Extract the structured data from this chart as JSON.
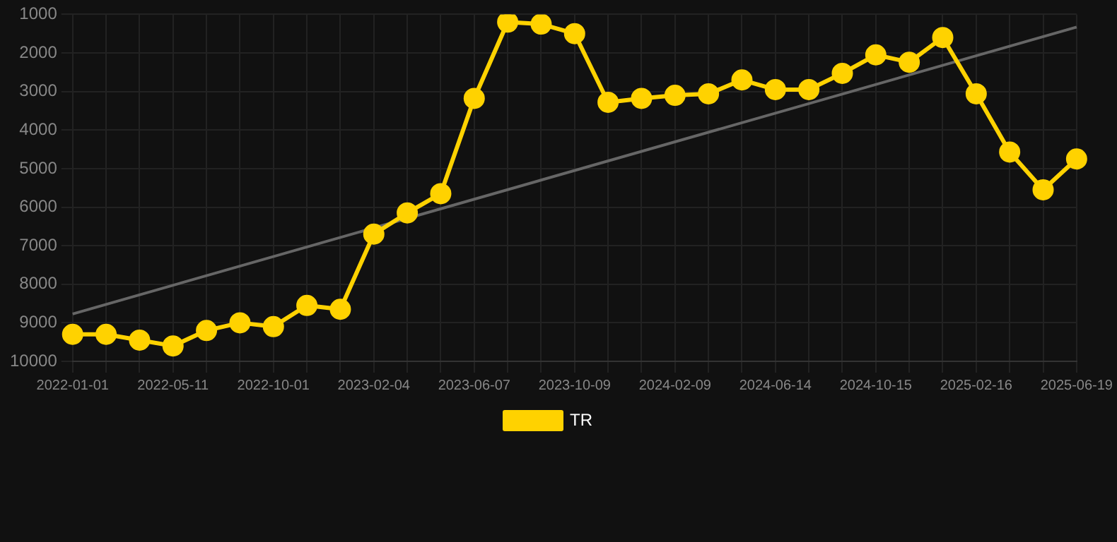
{
  "chart_data": {
    "type": "line",
    "categories": [
      "2022-01-01",
      null,
      null,
      "2022-05-11",
      null,
      null,
      "2022-10-01",
      null,
      null,
      "2023-02-04",
      null,
      null,
      "2023-06-07",
      null,
      null,
      "2023-10-09",
      null,
      null,
      "2024-02-09",
      null,
      null,
      "2024-06-14",
      null,
      null,
      "2024-10-15",
      null,
      null,
      "2025-02-16",
      null,
      null,
      "2025-06-19"
    ],
    "series": [
      {
        "name": "TR",
        "color": "#ffd200",
        "values": [
          9300,
          9300,
          9450,
          9600,
          9200,
          9000,
          9100,
          8550,
          8650,
          6700,
          6150,
          5650,
          3180,
          1200,
          1250,
          1500,
          3280,
          3180,
          3100,
          3060,
          2700,
          2950,
          2950,
          2530,
          2050,
          2240,
          1600,
          3060,
          4570,
          5550,
          4750
        ]
      },
      {
        "type": "line",
        "color": "#666666",
        "marker": "none",
        "values": [
          8770,
          null,
          null,
          null,
          null,
          null,
          null,
          null,
          null,
          null,
          null,
          null,
          null,
          null,
          null,
          null,
          null,
          null,
          null,
          null,
          null,
          null,
          null,
          null,
          null,
          null,
          null,
          null,
          null,
          null,
          1330
        ]
      }
    ],
    "ylim": [
      10000,
      1000
    ],
    "yticks": [
      1000,
      2000,
      3000,
      4000,
      5000,
      6000,
      7000,
      8000,
      9000,
      10000
    ],
    "grid": true,
    "legend": "bottom",
    "marker": "circle",
    "line_style": "solid"
  }
}
